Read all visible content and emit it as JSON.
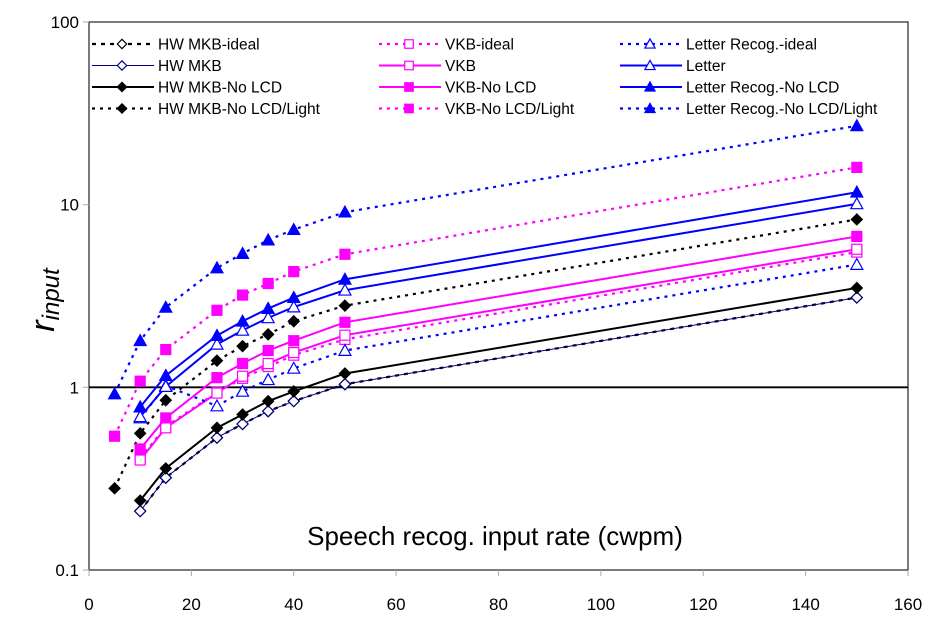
{
  "chart_data": {
    "type": "line",
    "title": "",
    "xlabel": "Speech recog. input rate (cwpm)",
    "ylabel": "r",
    "ylabel_subscript": "input",
    "xlim": [
      0,
      160
    ],
    "ylim": [
      0.1,
      100
    ],
    "yscale": "log",
    "x_ticks": [
      0,
      20,
      40,
      60,
      80,
      100,
      120,
      140,
      160
    ],
    "x_tick_labels": [
      "0",
      "20",
      "40",
      "60",
      "80",
      "100",
      "120",
      "140",
      "160"
    ],
    "y_ticks": [
      0.1,
      1,
      10,
      100
    ],
    "y_tick_labels": [
      "0.1",
      "1",
      "10",
      "100"
    ],
    "grid": false,
    "reference_line": {
      "y": 1
    },
    "legend_position": "top",
    "series": [
      {
        "name": "HW MKB-ideal",
        "color": "#000000",
        "marker": "diamond-open",
        "line": "dashed",
        "x": [
          10,
          15,
          25,
          30,
          35,
          40,
          50,
          150
        ],
        "values": [
          0.21,
          0.32,
          0.53,
          0.63,
          0.74,
          0.84,
          1.04,
          3.1
        ]
      },
      {
        "name": "HW MKB",
        "color": "#000080",
        "marker": "diamond-open",
        "line": "solid-thin",
        "x": [
          10,
          15,
          25,
          30,
          35,
          40,
          50,
          150
        ],
        "values": [
          0.21,
          0.32,
          0.53,
          0.63,
          0.74,
          0.84,
          1.04,
          3.1
        ]
      },
      {
        "name": "HW MKB-No LCD",
        "color": "#000000",
        "marker": "diamond-filled",
        "line": "solid",
        "x": [
          10,
          15,
          25,
          30,
          35,
          40,
          50,
          150
        ],
        "values": [
          0.24,
          0.36,
          0.6,
          0.71,
          0.84,
          0.95,
          1.19,
          3.5
        ]
      },
      {
        "name": "HW MKB-No LCD/Light",
        "color": "#000000",
        "marker": "diamond-filled",
        "line": "dotted",
        "x": [
          5,
          10,
          15,
          25,
          30,
          35,
          40,
          50,
          150
        ],
        "values": [
          0.28,
          0.56,
          0.85,
          1.4,
          1.68,
          1.95,
          2.3,
          2.8,
          8.3
        ]
      },
      {
        "name": "VKB-ideal",
        "color": "#ff00ff",
        "marker": "square-open",
        "line": "dotted",
        "x": [
          10,
          15,
          25,
          30,
          35,
          40,
          50,
          150
        ],
        "values": [
          0.41,
          0.61,
          0.94,
          1.12,
          1.3,
          1.5,
          1.83,
          5.5
        ]
      },
      {
        "name": "VKB",
        "color": "#ff00ff",
        "marker": "square-open",
        "line": "solid",
        "x": [
          10,
          15,
          25,
          30,
          35,
          40,
          50,
          150
        ],
        "values": [
          0.4,
          0.6,
          0.93,
          1.15,
          1.35,
          1.55,
          1.93,
          5.7
        ]
      },
      {
        "name": "VKB-No LCD",
        "color": "#ff00ff",
        "marker": "square-filled",
        "line": "solid",
        "x": [
          10,
          15,
          25,
          30,
          35,
          40,
          50,
          150
        ],
        "values": [
          0.46,
          0.68,
          1.13,
          1.35,
          1.59,
          1.8,
          2.27,
          6.7
        ]
      },
      {
        "name": "VKB-No LCD/Light",
        "color": "#ff00ff",
        "marker": "square-filled",
        "line": "dotted",
        "x": [
          5,
          10,
          15,
          25,
          30,
          35,
          40,
          50,
          150
        ],
        "values": [
          0.54,
          1.08,
          1.61,
          2.64,
          3.2,
          3.7,
          4.3,
          5.35,
          16
        ]
      },
      {
        "name": "Letter Recog.-ideal",
        "color": "#0000ff",
        "marker": "triangle-open",
        "line": "dotted",
        "x": [
          10,
          15,
          25,
          30,
          35,
          40,
          50,
          150
        ],
        "values": [
          0.68,
          1.02,
          0.79,
          0.95,
          1.1,
          1.27,
          1.59,
          4.7
        ]
      },
      {
        "name": "Letter",
        "color": "#0000ff",
        "marker": "triangle-open",
        "line": "solid",
        "x": [
          10,
          15,
          25,
          30,
          35,
          40,
          50,
          150
        ],
        "values": [
          0.69,
          1.01,
          1.72,
          2.05,
          2.4,
          2.75,
          3.4,
          10.1
        ]
      },
      {
        "name": "Letter Recog.-No LCD",
        "color": "#0000ff",
        "marker": "triangle-filled",
        "line": "solid",
        "x": [
          10,
          15,
          25,
          30,
          35,
          40,
          50,
          150
        ],
        "values": [
          0.78,
          1.16,
          1.92,
          2.3,
          2.7,
          3.1,
          3.9,
          11.7
        ]
      },
      {
        "name": "Letter Recog.-No LCD/Light",
        "color": "#0000ff",
        "marker": "triangle-filled",
        "line": "dotted",
        "x": [
          5,
          10,
          15,
          25,
          30,
          35,
          40,
          50,
          150
        ],
        "values": [
          0.92,
          1.8,
          2.74,
          4.5,
          5.4,
          6.4,
          7.3,
          9.1,
          27
        ]
      }
    ]
  }
}
